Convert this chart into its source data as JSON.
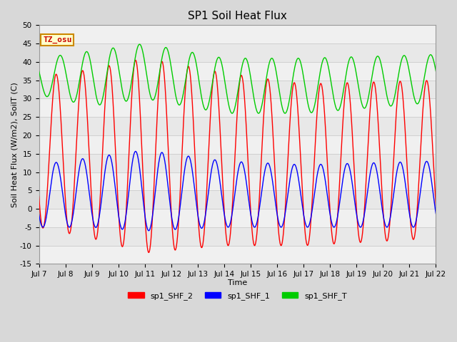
{
  "title": "SP1 Soil Heat Flux",
  "xlabel": "Time",
  "ylabel": "Soil Heat Flux (W/m2), SoilT (C)",
  "ylim": [
    -15,
    50
  ],
  "yticks": [
    -15,
    -10,
    -5,
    0,
    5,
    10,
    15,
    20,
    25,
    30,
    35,
    40,
    45,
    50
  ],
  "xtick_labels": [
    "Jul 7",
    "Jul 8",
    "Jul 9",
    "Jul 10",
    "Jul 11",
    "Jul 12",
    "Jul 13",
    "Jul 14",
    "Jul 15",
    "Jul 16",
    "Jul 17",
    "Jul 18",
    "Jul 19",
    "Jul 20",
    "Jul 21",
    "Jul 22"
  ],
  "legend_labels": [
    "sp1_SHF_2",
    "sp1_SHF_1",
    "sp1_SHF_T"
  ],
  "legend_colors": [
    "#ff0000",
    "#0000ff",
    "#00cc00"
  ],
  "annotation_text": "TZ_osu",
  "annotation_color": "#cc0000",
  "annotation_bg": "#ffffcc",
  "annotation_border": "#cc8800",
  "fig_bg_color": "#d8d8d8",
  "plot_bg_color": "#e8e8e8",
  "band_color_light": "#f0f0f0",
  "grid_color": "#d0d0d0",
  "title_fontsize": 11,
  "label_fontsize": 8,
  "tick_fontsize": 7.5,
  "legend_fontsize": 8,
  "linewidth": 1.0
}
